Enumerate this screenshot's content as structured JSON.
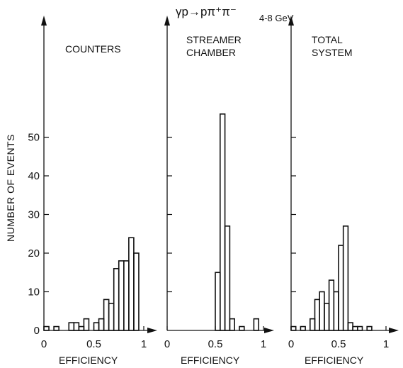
{
  "reaction": {
    "formula": "γp→pπ⁺π⁻",
    "energy_range": "4-8 GeV"
  },
  "y_axis_label": "NUMBER OF EVENTS",
  "colors": {
    "ink": "#111111",
    "background": "#ffffff"
  },
  "chart_data": [
    {
      "type": "bar",
      "title": "COUNTERS",
      "xlabel": "EFFICIENCY",
      "ylabel": "NUMBER OF EVENTS",
      "xlim": [
        0,
        1.1
      ],
      "ylim": [
        0,
        57
      ],
      "x_tick_labels": [
        "0",
        "0.5",
        "1"
      ],
      "y_tick_labels": [
        "0",
        "10",
        "20",
        "30",
        "40",
        "50"
      ],
      "bin_width": 0.05,
      "bin_starts": [
        0.0,
        0.05,
        0.1,
        0.15,
        0.2,
        0.25,
        0.3,
        0.35,
        0.4,
        0.45,
        0.5,
        0.55,
        0.6,
        0.65,
        0.7,
        0.75,
        0.8,
        0.85,
        0.9,
        0.95
      ],
      "values": [
        1,
        0,
        1,
        0,
        0,
        2,
        2,
        1,
        3,
        0,
        2,
        3,
        8,
        7,
        16,
        18,
        18,
        24,
        20,
        0
      ]
    },
    {
      "type": "bar",
      "title": "STREAMER CHAMBER",
      "xlabel": "EFFICIENCY",
      "xlim": [
        0,
        1.05
      ],
      "ylim": [
        0,
        57
      ],
      "x_tick_labels": [
        "0",
        "0.5",
        "1"
      ],
      "bin_width": 0.05,
      "bin_starts": [
        0.5,
        0.55,
        0.6,
        0.65,
        0.7,
        0.75,
        0.8,
        0.85,
        0.9,
        0.95
      ],
      "values": [
        15,
        56,
        27,
        3,
        0,
        1,
        0,
        0,
        3,
        0
      ]
    },
    {
      "type": "bar",
      "title": "TOTAL SYSTEM",
      "xlabel": "EFFICIENCY",
      "xlim": [
        0,
        1.1
      ],
      "ylim": [
        0,
        57
      ],
      "x_tick_labels": [
        "0",
        "0.5",
        "1"
      ],
      "bin_width": 0.05,
      "bin_starts": [
        0.0,
        0.05,
        0.1,
        0.15,
        0.2,
        0.25,
        0.3,
        0.35,
        0.4,
        0.45,
        0.5,
        0.55,
        0.6,
        0.65,
        0.7,
        0.75,
        0.8
      ],
      "values": [
        1,
        0,
        1,
        0,
        3,
        8,
        10,
        7,
        13,
        10,
        22,
        27,
        2,
        1,
        1,
        0,
        1
      ]
    }
  ]
}
